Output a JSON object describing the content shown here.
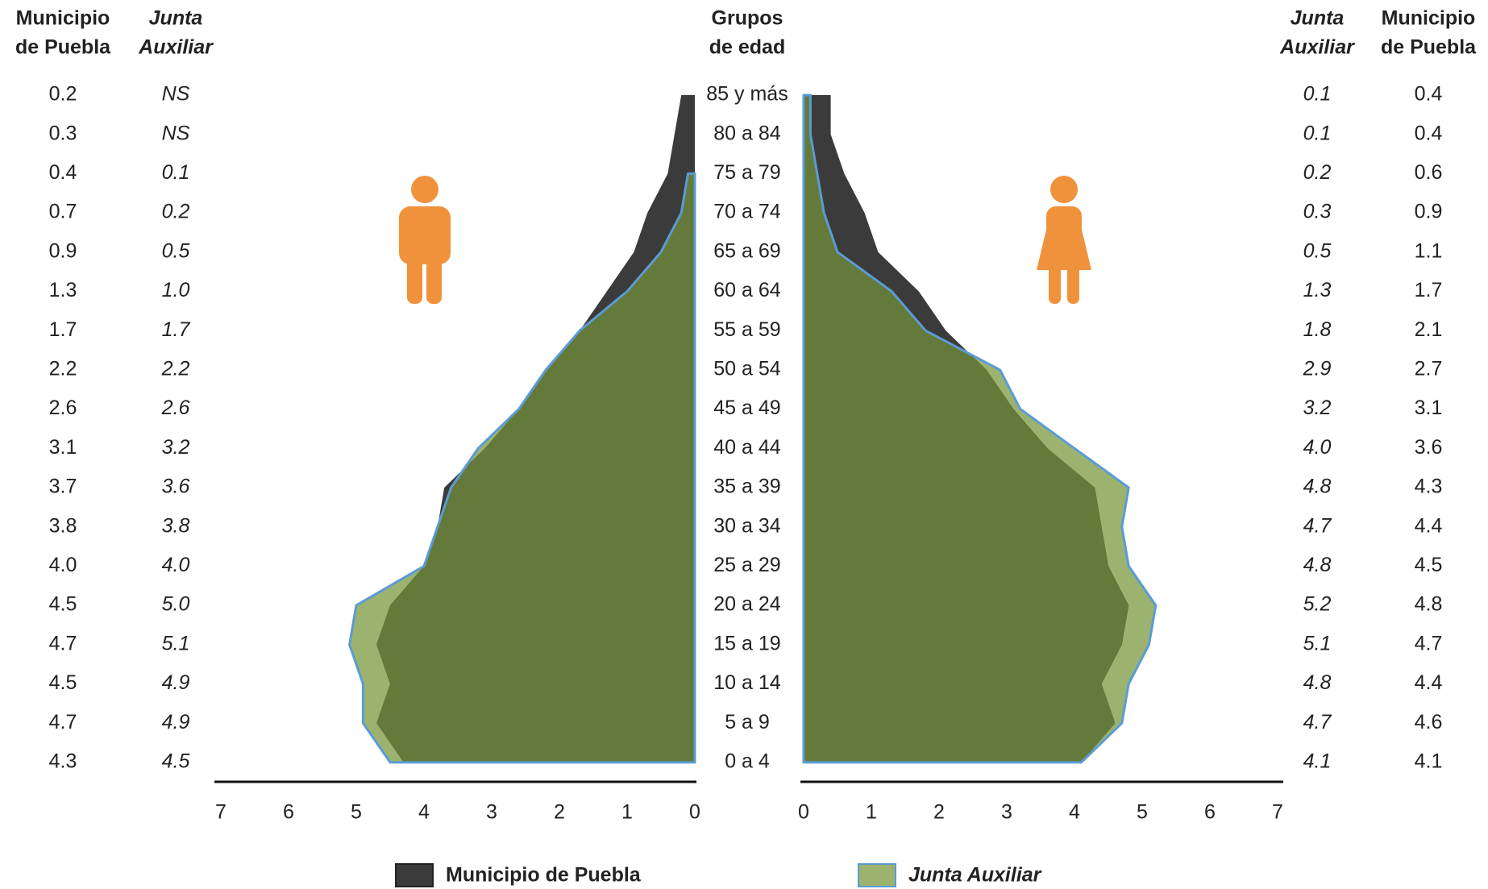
{
  "chart_data": {
    "type": "pyramid",
    "categories_header": [
      "Grupos",
      "de edad"
    ],
    "categories": [
      "85 y más",
      "80 a 84",
      "75 a 79",
      "70 a 74",
      "65 a 69",
      "60 a 64",
      "55 a 59",
      "50 a 54",
      "45 a 49",
      "40 a 44",
      "35 a 39",
      "30 a 34",
      "25 a 29",
      "20 a 24",
      "15 a 19",
      "10 a 14",
      "5 a 9",
      "0 a 4"
    ],
    "xlim": [
      0,
      7
    ],
    "xticks": [
      0,
      1,
      2,
      3,
      4,
      5,
      6,
      7
    ],
    "series": [
      {
        "name": "Municipio de Puebla",
        "header": [
          "Municipio",
          "de Puebla"
        ],
        "side": "left",
        "italic": false,
        "color": "#3b3b3b",
        "values": [
          0.2,
          0.3,
          0.4,
          0.7,
          0.9,
          1.3,
          1.7,
          2.2,
          2.6,
          3.1,
          3.7,
          3.8,
          4.0,
          4.5,
          4.7,
          4.5,
          4.7,
          4.3
        ],
        "value_labels": [
          "0.2",
          "0.3",
          "0.4",
          "0.7",
          "0.9",
          "1.3",
          "1.7",
          "2.2",
          "2.6",
          "3.1",
          "3.7",
          "3.8",
          "4.0",
          "4.5",
          "4.7",
          "4.5",
          "4.7",
          "4.3"
        ]
      },
      {
        "name": "Junta Auxiliar",
        "header": [
          "Junta",
          "Auxiliar"
        ],
        "side": "left",
        "italic": true,
        "color": "#9bb36f",
        "values": [
          null,
          null,
          0.1,
          0.2,
          0.5,
          1.0,
          1.7,
          2.2,
          2.6,
          3.2,
          3.6,
          3.8,
          4.0,
          5.0,
          5.1,
          4.9,
          4.9,
          4.5
        ],
        "value_labels": [
          "NS",
          "NS",
          "0.1",
          "0.2",
          "0.5",
          "1.0",
          "1.7",
          "2.2",
          "2.6",
          "3.2",
          "3.6",
          "3.8",
          "4.0",
          "5.0",
          "5.1",
          "4.9",
          "4.9",
          "4.5"
        ]
      },
      {
        "name": "Junta Auxiliar",
        "header": [
          "Junta",
          "Auxiliar"
        ],
        "side": "right",
        "italic": true,
        "color": "#9bb36f",
        "values": [
          0.1,
          0.1,
          0.2,
          0.3,
          0.5,
          1.3,
          1.8,
          2.9,
          3.2,
          4.0,
          4.8,
          4.7,
          4.8,
          5.2,
          5.1,
          4.8,
          4.7,
          4.1
        ],
        "value_labels": [
          "0.1",
          "0.1",
          "0.2",
          "0.3",
          "0.5",
          "1.3",
          "1.8",
          "2.9",
          "3.2",
          "4.0",
          "4.8",
          "4.7",
          "4.8",
          "5.2",
          "5.1",
          "4.8",
          "4.7",
          "4.1"
        ]
      },
      {
        "name": "Municipio de Puebla",
        "header": [
          "Municipio",
          "de Puebla"
        ],
        "side": "right",
        "italic": false,
        "color": "#3b3b3b",
        "values": [
          0.4,
          0.4,
          0.6,
          0.9,
          1.1,
          1.7,
          2.1,
          2.7,
          3.1,
          3.6,
          4.3,
          4.4,
          4.5,
          4.8,
          4.7,
          4.4,
          4.6,
          4.1
        ],
        "value_labels": [
          "0.4",
          "0.4",
          "0.6",
          "0.9",
          "1.1",
          "1.7",
          "2.1",
          "2.7",
          "3.1",
          "3.6",
          "4.3",
          "4.4",
          "4.5",
          "4.8",
          "4.7",
          "4.4",
          "4.6",
          "4.1"
        ]
      }
    ]
  }
}
